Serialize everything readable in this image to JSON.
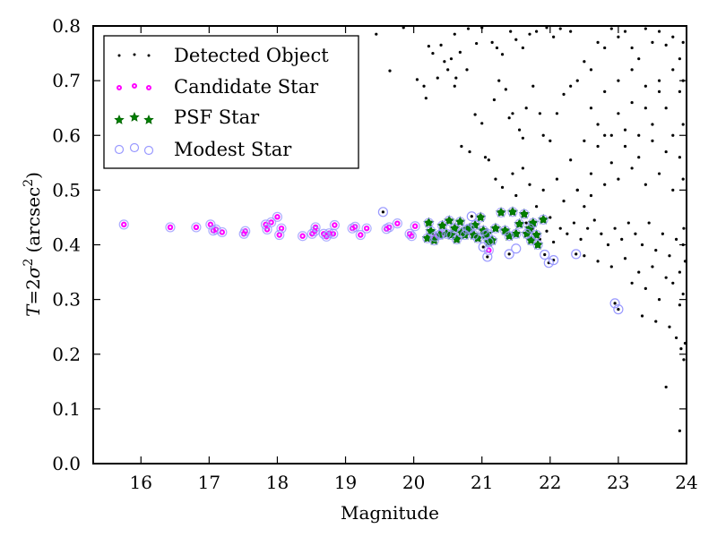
{
  "chart_data": {
    "type": "scatter",
    "title": "",
    "xlabel": "Magnitude",
    "ylabel": "T = 2σ² (arcsec²)",
    "ylabel_parts": {
      "lhs": "T",
      "eq": "=",
      "two": "2",
      "sigma": "σ",
      "sup": "2",
      "unit": "(arcsec",
      "unit_sup": "2",
      "close": ")"
    },
    "xlim": [
      15.3,
      24.0
    ],
    "ylim": [
      0.0,
      0.8
    ],
    "xticks": [
      16,
      17,
      18,
      19,
      20,
      21,
      22,
      23,
      24
    ],
    "xtick_labels": [
      "16",
      "17",
      "18",
      "19",
      "20",
      "21",
      "22",
      "23",
      "24"
    ],
    "yticks": [
      0.0,
      0.1,
      0.2,
      0.3,
      0.4,
      0.5,
      0.6,
      0.7,
      0.8
    ],
    "ytick_labels": [
      "0.0",
      "0.1",
      "0.2",
      "0.3",
      "0.4",
      "0.5",
      "0.6",
      "0.7",
      "0.8"
    ],
    "grid": false,
    "legend_position": "top-left",
    "legend": [
      {
        "label": "Detected Object",
        "marker": "dot",
        "color": "#000000"
      },
      {
        "label": "Candidate Star",
        "marker": "circle-small",
        "color": "#ff00ff"
      },
      {
        "label": "PSF Star",
        "marker": "star",
        "color": "#008000"
      },
      {
        "label": "Modest Star",
        "marker": "circle-open",
        "color": "#9999ff"
      }
    ],
    "series": [
      {
        "name": "Candidate Star",
        "color": "#ff00ff",
        "points": [
          [
            15.75,
            0.437
          ],
          [
            16.43,
            0.432
          ],
          [
            16.81,
            0.432
          ],
          [
            17.02,
            0.437
          ],
          [
            17.06,
            0.426
          ],
          [
            17.1,
            0.428
          ],
          [
            17.19,
            0.423
          ],
          [
            17.51,
            0.42
          ],
          [
            17.53,
            0.425
          ],
          [
            17.83,
            0.437
          ],
          [
            17.85,
            0.428
          ],
          [
            17.91,
            0.441
          ],
          [
            18.0,
            0.451
          ],
          [
            18.03,
            0.418
          ],
          [
            18.06,
            0.43
          ],
          [
            18.37,
            0.416
          ],
          [
            18.51,
            0.42
          ],
          [
            18.55,
            0.425
          ],
          [
            18.56,
            0.432
          ],
          [
            18.68,
            0.42
          ],
          [
            18.72,
            0.415
          ],
          [
            18.76,
            0.421
          ],
          [
            18.82,
            0.42
          ],
          [
            18.84,
            0.436
          ],
          [
            19.1,
            0.43
          ],
          [
            19.14,
            0.433
          ],
          [
            19.22,
            0.418
          ],
          [
            19.31,
            0.43
          ],
          [
            19.6,
            0.429
          ],
          [
            19.64,
            0.432
          ],
          [
            19.76,
            0.439
          ],
          [
            19.94,
            0.42
          ],
          [
            19.97,
            0.416
          ],
          [
            20.02,
            0.434
          ],
          [
            20.31,
            0.415
          ],
          [
            20.4,
            0.42
          ],
          [
            21.1,
            0.39
          ]
        ]
      },
      {
        "name": "PSF Star",
        "color": "#008000",
        "points": [
          [
            20.2,
            0.412
          ],
          [
            20.22,
            0.44
          ],
          [
            20.25,
            0.425
          ],
          [
            20.3,
            0.408
          ],
          [
            20.38,
            0.418
          ],
          [
            20.42,
            0.435
          ],
          [
            20.48,
            0.42
          ],
          [
            20.52,
            0.444
          ],
          [
            20.55,
            0.418
          ],
          [
            20.6,
            0.43
          ],
          [
            20.63,
            0.41
          ],
          [
            20.68,
            0.442
          ],
          [
            20.7,
            0.422
          ],
          [
            20.75,
            0.418
          ],
          [
            20.78,
            0.428
          ],
          [
            20.82,
            0.43
          ],
          [
            20.88,
            0.418
          ],
          [
            20.9,
            0.436
          ],
          [
            20.94,
            0.412
          ],
          [
            20.98,
            0.45
          ],
          [
            21.02,
            0.426
          ],
          [
            21.05,
            0.418
          ],
          [
            21.08,
            0.42
          ],
          [
            21.1,
            0.405
          ],
          [
            21.15,
            0.408
          ],
          [
            21.2,
            0.43
          ],
          [
            21.28,
            0.459
          ],
          [
            21.34,
            0.426
          ],
          [
            21.4,
            0.416
          ],
          [
            21.45,
            0.46
          ],
          [
            21.5,
            0.42
          ],
          [
            21.55,
            0.438
          ],
          [
            21.62,
            0.456
          ],
          [
            21.66,
            0.42
          ],
          [
            21.7,
            0.43
          ],
          [
            21.72,
            0.408
          ],
          [
            21.75,
            0.44
          ],
          [
            21.8,
            0.418
          ],
          [
            21.82,
            0.4
          ],
          [
            21.9,
            0.446
          ]
        ]
      },
      {
        "name": "Modest Star",
        "color": "#9999ff",
        "points": [
          [
            19.55,
            0.46
          ],
          [
            20.85,
            0.452
          ],
          [
            21.02,
            0.396
          ],
          [
            21.08,
            0.378
          ],
          [
            21.4,
            0.383
          ],
          [
            21.5,
            0.393
          ],
          [
            21.92,
            0.382
          ],
          [
            21.98,
            0.367
          ],
          [
            22.05,
            0.372
          ],
          [
            22.38,
            0.383
          ],
          [
            22.95,
            0.293
          ],
          [
            23.0,
            0.282
          ]
        ]
      },
      {
        "name": "Detected Object",
        "color": "#000000",
        "points": [
          [
            19.55,
            0.46
          ],
          [
            20.85,
            0.452
          ],
          [
            21.02,
            0.396
          ],
          [
            21.08,
            0.378
          ],
          [
            21.4,
            0.383
          ],
          [
            21.92,
            0.382
          ],
          [
            21.98,
            0.367
          ],
          [
            22.05,
            0.372
          ],
          [
            22.38,
            0.383
          ],
          [
            22.95,
            0.293
          ],
          [
            23.0,
            0.282
          ],
          [
            19.85,
            0.797
          ],
          [
            19.45,
            0.785
          ],
          [
            19.65,
            0.718
          ],
          [
            20.05,
            0.702
          ],
          [
            20.4,
            0.765
          ],
          [
            20.6,
            0.785
          ],
          [
            20.8,
            0.795
          ],
          [
            21.0,
            0.797
          ],
          [
            20.22,
            0.763
          ],
          [
            20.28,
            0.75
          ],
          [
            20.45,
            0.735
          ],
          [
            20.55,
            0.74
          ],
          [
            20.15,
            0.69
          ],
          [
            20.18,
            0.668
          ],
          [
            20.62,
            0.705
          ],
          [
            20.78,
            0.72
          ],
          [
            20.35,
            0.705
          ],
          [
            20.5,
            0.72
          ],
          [
            20.68,
            0.752
          ],
          [
            20.92,
            0.768
          ],
          [
            21.15,
            0.77
          ],
          [
            21.22,
            0.76
          ],
          [
            21.3,
            0.748
          ],
          [
            21.42,
            0.79
          ],
          [
            21.5,
            0.775
          ],
          [
            21.6,
            0.76
          ],
          [
            21.7,
            0.785
          ],
          [
            21.8,
            0.79
          ],
          [
            21.95,
            0.797
          ],
          [
            22.05,
            0.78
          ],
          [
            22.15,
            0.795
          ],
          [
            22.3,
            0.79
          ],
          [
            20.7,
            0.58
          ],
          [
            20.82,
            0.57
          ],
          [
            20.6,
            0.69
          ],
          [
            20.9,
            0.638
          ],
          [
            21.0,
            0.622
          ],
          [
            21.05,
            0.56
          ],
          [
            21.1,
            0.555
          ],
          [
            21.18,
            0.665
          ],
          [
            21.25,
            0.7
          ],
          [
            21.35,
            0.684
          ],
          [
            21.4,
            0.632
          ],
          [
            21.45,
            0.64
          ],
          [
            21.55,
            0.61
          ],
          [
            21.6,
            0.595
          ],
          [
            21.65,
            0.65
          ],
          [
            21.75,
            0.69
          ],
          [
            21.85,
            0.64
          ],
          [
            21.9,
            0.6
          ],
          [
            22.0,
            0.59
          ],
          [
            22.1,
            0.64
          ],
          [
            22.2,
            0.675
          ],
          [
            22.3,
            0.69
          ],
          [
            22.4,
            0.7
          ],
          [
            22.5,
            0.735
          ],
          [
            22.6,
            0.72
          ],
          [
            22.7,
            0.77
          ],
          [
            22.8,
            0.76
          ],
          [
            22.9,
            0.795
          ],
          [
            23.0,
            0.78
          ],
          [
            23.1,
            0.79
          ],
          [
            23.2,
            0.76
          ],
          [
            23.3,
            0.74
          ],
          [
            23.4,
            0.795
          ],
          [
            23.5,
            0.77
          ],
          [
            23.6,
            0.79
          ],
          [
            23.7,
            0.765
          ],
          [
            23.8,
            0.78
          ],
          [
            23.9,
            0.74
          ],
          [
            23.95,
            0.77
          ],
          [
            21.2,
            0.52
          ],
          [
            21.3,
            0.505
          ],
          [
            21.45,
            0.53
          ],
          [
            21.5,
            0.49
          ],
          [
            21.6,
            0.54
          ],
          [
            21.7,
            0.51
          ],
          [
            21.8,
            0.47
          ],
          [
            21.9,
            0.5
          ],
          [
            22.0,
            0.45
          ],
          [
            22.1,
            0.52
          ],
          [
            22.2,
            0.48
          ],
          [
            22.3,
            0.555
          ],
          [
            22.4,
            0.5
          ],
          [
            22.5,
            0.47
          ],
          [
            22.6,
            0.53
          ],
          [
            22.7,
            0.58
          ],
          [
            22.8,
            0.6
          ],
          [
            22.9,
            0.55
          ],
          [
            23.0,
            0.64
          ],
          [
            23.1,
            0.61
          ],
          [
            23.2,
            0.66
          ],
          [
            23.3,
            0.6
          ],
          [
            23.4,
            0.65
          ],
          [
            23.5,
            0.62
          ],
          [
            23.6,
            0.7
          ],
          [
            23.7,
            0.65
          ],
          [
            23.8,
            0.6
          ],
          [
            23.9,
            0.68
          ],
          [
            23.95,
            0.62
          ],
          [
            21.65,
            0.44
          ],
          [
            21.75,
            0.43
          ],
          [
            21.85,
            0.41
          ],
          [
            21.95,
            0.425
          ],
          [
            22.05,
            0.405
          ],
          [
            22.15,
            0.43
          ],
          [
            22.25,
            0.42
          ],
          [
            22.35,
            0.44
          ],
          [
            22.45,
            0.41
          ],
          [
            22.55,
            0.43
          ],
          [
            22.65,
            0.445
          ],
          [
            22.75,
            0.42
          ],
          [
            22.85,
            0.4
          ],
          [
            22.95,
            0.43
          ],
          [
            23.05,
            0.41
          ],
          [
            23.15,
            0.44
          ],
          [
            23.25,
            0.42
          ],
          [
            23.35,
            0.4
          ],
          [
            23.45,
            0.44
          ],
          [
            23.55,
            0.39
          ],
          [
            23.65,
            0.42
          ],
          [
            23.75,
            0.38
          ],
          [
            23.85,
            0.41
          ],
          [
            23.95,
            0.4
          ],
          [
            22.5,
            0.38
          ],
          [
            22.7,
            0.37
          ],
          [
            22.9,
            0.36
          ],
          [
            23.1,
            0.375
          ],
          [
            23.3,
            0.35
          ],
          [
            23.5,
            0.36
          ],
          [
            23.7,
            0.34
          ],
          [
            23.9,
            0.35
          ],
          [
            23.2,
            0.33
          ],
          [
            23.4,
            0.32
          ],
          [
            23.6,
            0.3
          ],
          [
            23.8,
            0.33
          ],
          [
            23.9,
            0.29
          ],
          [
            23.95,
            0.31
          ],
          [
            22.4,
            0.5
          ],
          [
            22.6,
            0.49
          ],
          [
            22.8,
            0.51
          ],
          [
            23.0,
            0.52
          ],
          [
            23.2,
            0.54
          ],
          [
            23.4,
            0.51
          ],
          [
            23.6,
            0.53
          ],
          [
            23.8,
            0.5
          ],
          [
            23.95,
            0.52
          ],
          [
            22.5,
            0.59
          ],
          [
            22.7,
            0.62
          ],
          [
            22.9,
            0.6
          ],
          [
            23.1,
            0.58
          ],
          [
            23.3,
            0.56
          ],
          [
            23.5,
            0.59
          ],
          [
            23.7,
            0.57
          ],
          [
            23.9,
            0.56
          ],
          [
            22.6,
            0.65
          ],
          [
            22.8,
            0.68
          ],
          [
            23.0,
            0.7
          ],
          [
            23.2,
            0.72
          ],
          [
            23.4,
            0.69
          ],
          [
            23.6,
            0.68
          ],
          [
            23.8,
            0.72
          ],
          [
            23.95,
            0.7
          ],
          [
            23.35,
            0.27
          ],
          [
            23.55,
            0.26
          ],
          [
            23.75,
            0.25
          ],
          [
            23.85,
            0.23
          ],
          [
            23.92,
            0.21
          ],
          [
            23.96,
            0.19
          ],
          [
            23.98,
            0.22
          ],
          [
            23.7,
            0.14
          ],
          [
            23.9,
            0.06
          ],
          [
            23.98,
            0.37
          ],
          [
            23.96,
            0.43
          ]
        ]
      }
    ]
  }
}
